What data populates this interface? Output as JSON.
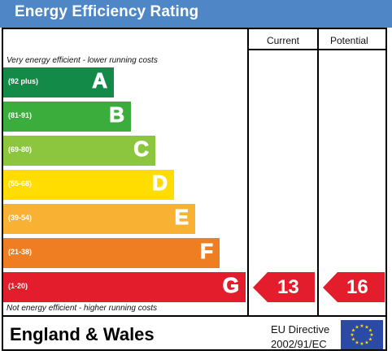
{
  "header": {
    "title": "Energy Efficiency Rating"
  },
  "columns": {
    "current": "Current",
    "potential": "Potential"
  },
  "notes": {
    "top": "Very energy efficient - lower running costs",
    "bottom": "Not energy efficient - higher running costs"
  },
  "bands": [
    {
      "range": "(92 plus)",
      "letter": "A",
      "color": "#138a48"
    },
    {
      "range": "(81-91)",
      "letter": "B",
      "color": "#3aad3c"
    },
    {
      "range": "(69-80)",
      "letter": "C",
      "color": "#8cc63f"
    },
    {
      "range": "(55-68)",
      "letter": "D",
      "color": "#ffdd00"
    },
    {
      "range": "(39-54)",
      "letter": "E",
      "color": "#f8b133"
    },
    {
      "range": "(21-38)",
      "letter": "F",
      "color": "#ef7d22"
    },
    {
      "range": "(1-20)",
      "letter": "G",
      "color": "#e31d2b"
    }
  ],
  "ratings": {
    "current": {
      "value": "13",
      "color": "#e31d2b"
    },
    "potential": {
      "value": "16",
      "color": "#e31d2b"
    }
  },
  "footer": {
    "region": "England & Wales",
    "directive_line1": "EU Directive",
    "directive_line2": "2002/91/EC"
  }
}
